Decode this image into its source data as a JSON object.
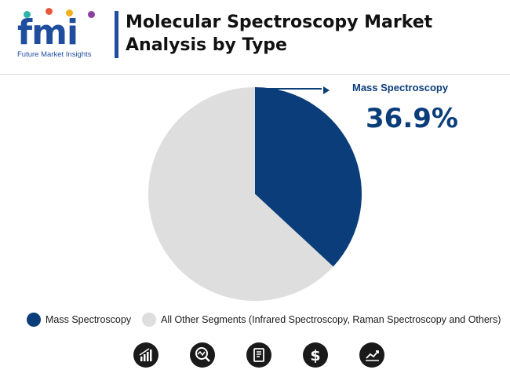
{
  "brand": {
    "letters": "fmi",
    "tagline": "Future Market Insights",
    "color": "#1f4e9e",
    "dot_colors": [
      "#2bb5a6",
      "#e8593a",
      "#f2b01e",
      "#8b3fa0"
    ]
  },
  "title": {
    "line1": "Molecular Spectroscopy Market",
    "line2": "Analysis by Type"
  },
  "callout": {
    "label": "Mass Spectroscopy",
    "value": "36.9%"
  },
  "chart_data": {
    "type": "pie",
    "slices": [
      {
        "label": "Mass Spectroscopy",
        "value": 36.9,
        "color": "#0a3d7a"
      },
      {
        "label": "All Other Segments (Infrared Spectroscopy, Raman Spectroscopy and Others)",
        "value": 63.1,
        "color": "#dedede"
      }
    ],
    "legend_position": "bottom"
  },
  "icons": [
    "bar-chart-icon",
    "magnifier-chart-icon",
    "document-icon",
    "dollar-icon",
    "line-chart-icon"
  ]
}
